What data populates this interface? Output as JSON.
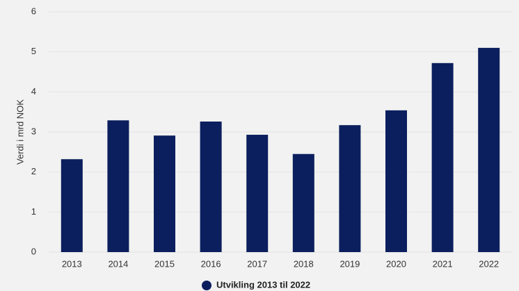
{
  "chart_data": {
    "type": "bar",
    "y_label": "Verdi i mrd NOK",
    "categories": [
      "2013",
      "2014",
      "2015",
      "2016",
      "2017",
      "2018",
      "2019",
      "2020",
      "2021",
      "2022"
    ],
    "series": [
      {
        "name": "Utvikling 2013 til 2022",
        "color": "#0b1f5e",
        "values": [
          2.32,
          3.29,
          2.91,
          3.26,
          2.93,
          2.45,
          3.17,
          3.54,
          4.72,
          5.1
        ]
      }
    ],
    "ylim": [
      0,
      6
    ],
    "yticks": [
      0,
      1,
      2,
      3,
      4,
      5,
      6
    ],
    "grid": true,
    "legend": "bottom"
  }
}
